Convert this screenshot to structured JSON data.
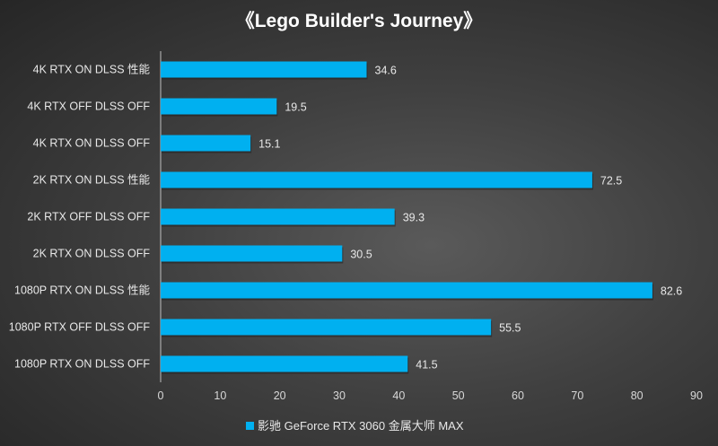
{
  "chart_data": {
    "type": "bar",
    "orientation": "horizontal",
    "title": "《Lego Builder's Journey》",
    "categories": [
      "4K RTX ON DLSS 性能",
      "4K RTX OFF DLSS OFF",
      "4K RTX ON DLSS OFF",
      "2K RTX ON DLSS 性能",
      "2K RTX OFF DLSS OFF",
      "2K RTX ON DLSS OFF",
      "1080P RTX ON DLSS 性能",
      "1080P RTX OFF DLSS OFF",
      "1080P RTX ON DLSS OFF"
    ],
    "series": [
      {
        "name": "影驰 GeForce RTX 3060 金属大师 MAX",
        "values": [
          34.6,
          19.5,
          15.1,
          72.5,
          39.3,
          30.5,
          82.6,
          55.5,
          41.5
        ],
        "color": "#00b0f0"
      }
    ],
    "xlim": [
      0,
      90
    ],
    "xticks": [
      0,
      10,
      20,
      30,
      40,
      50,
      60,
      70,
      80,
      90
    ],
    "grid": false,
    "legend": "bottom",
    "data_labels": true,
    "background": "#3a3a3a"
  }
}
